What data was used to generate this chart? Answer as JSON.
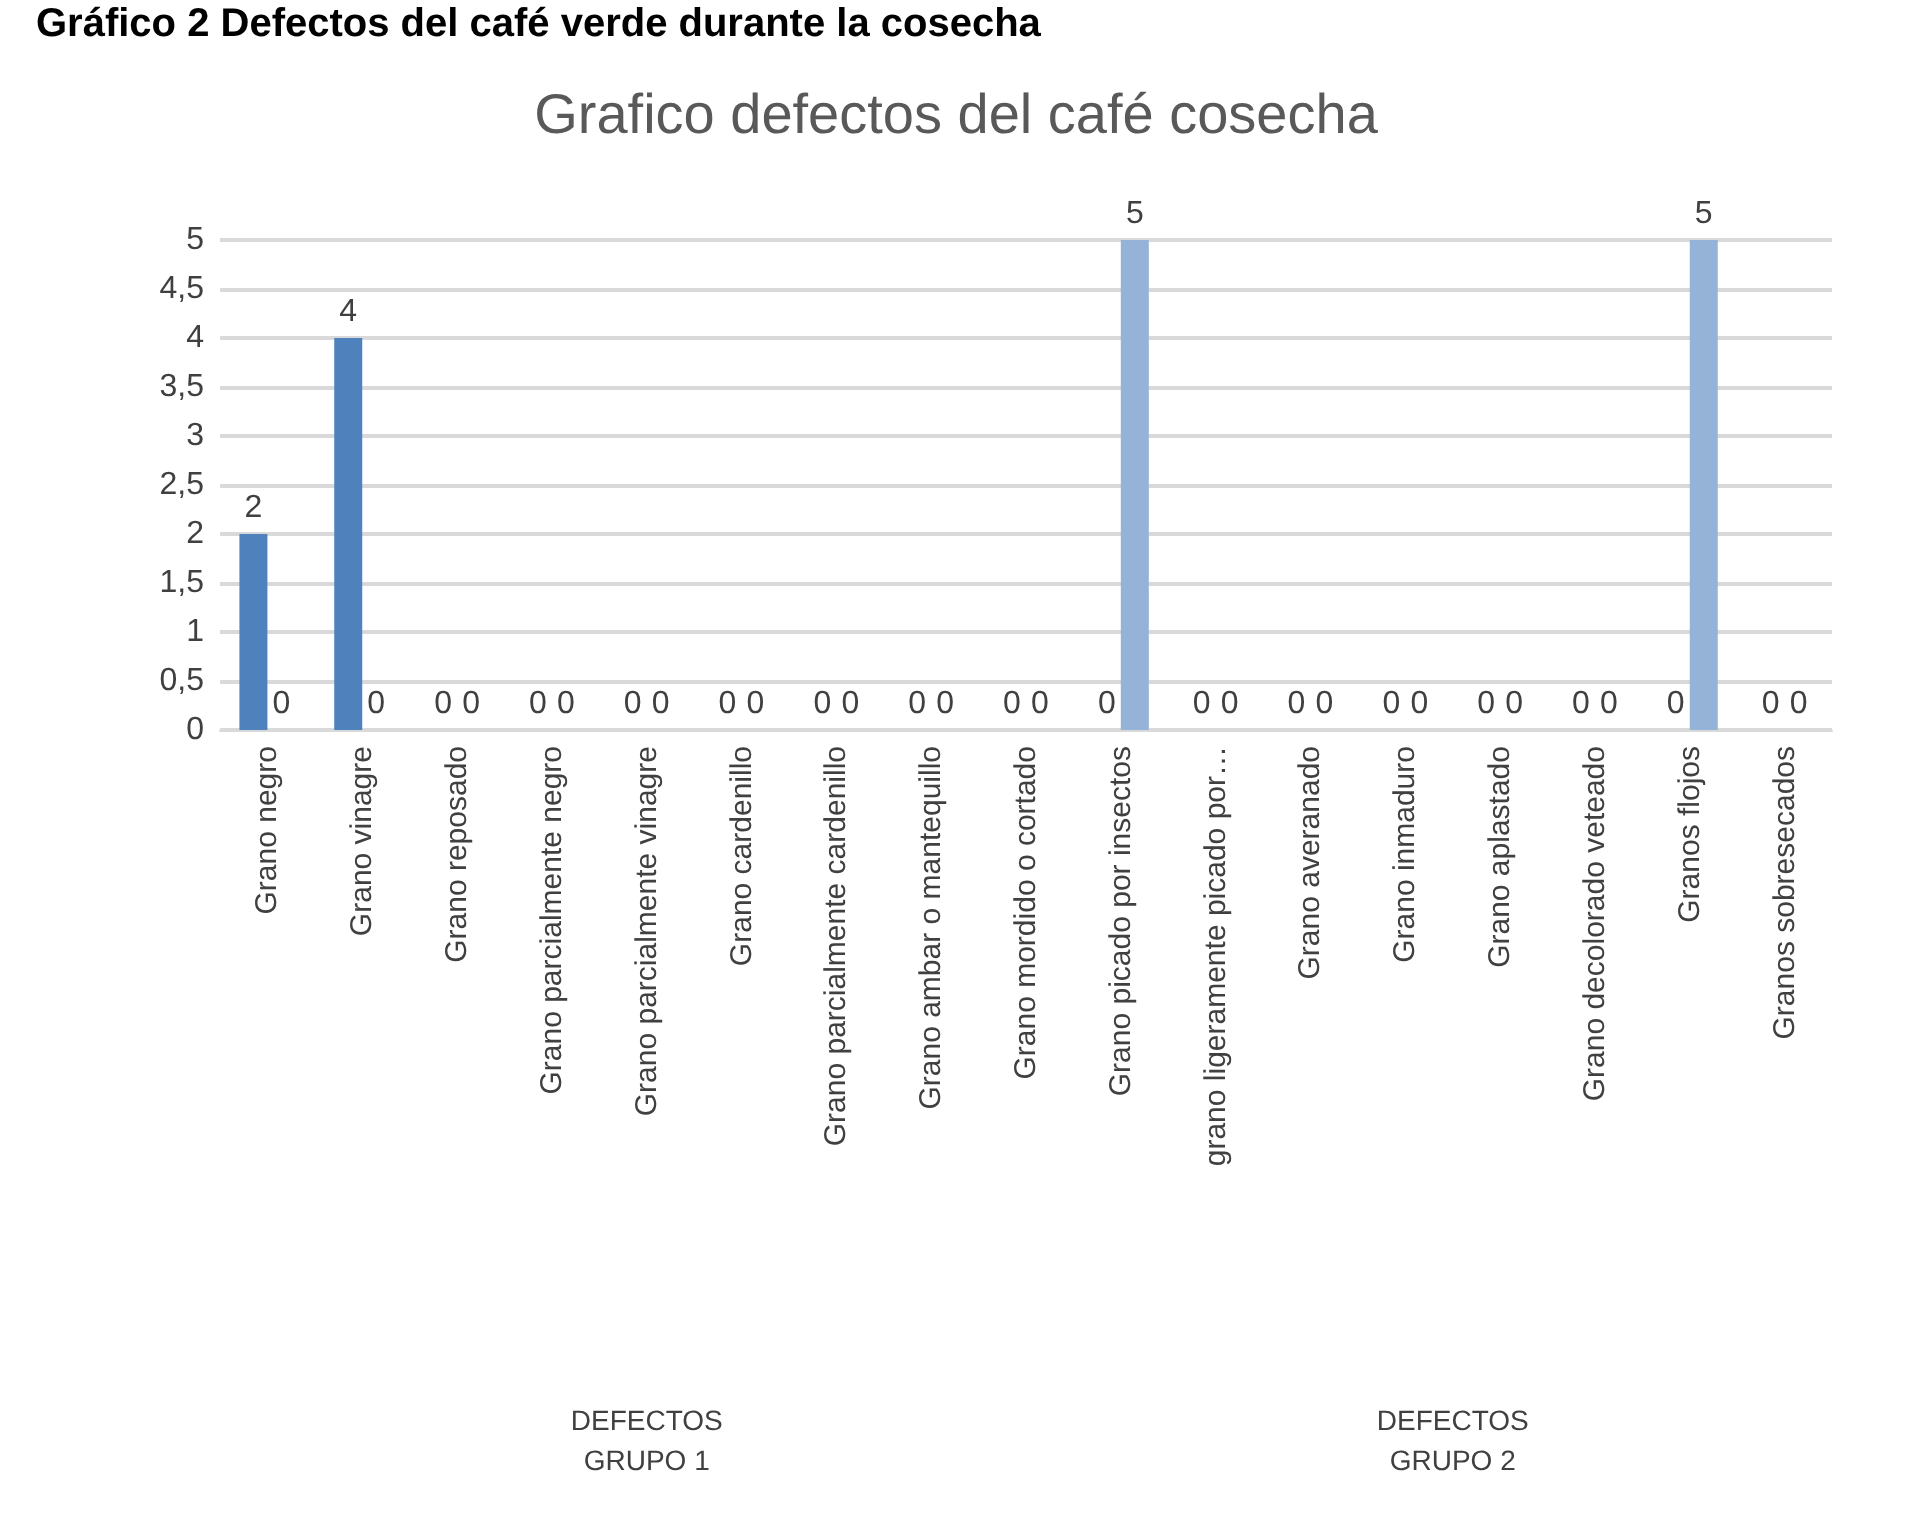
{
  "chart_data": {
    "type": "bar",
    "title": "Grafico defectos del café cosecha",
    "categories": [
      "Grano negro",
      "Grano vinagre",
      "Grano reposado",
      "Grano parcialmente negro",
      "Grano parcialmente vinagre",
      "Grano cardenillo",
      "Grano parcialmente cardenillo",
      "Grano ambar o mantequillo",
      "Grano mordido o cortado",
      "Grano picado por insectos",
      "grano ligeramente picado por…",
      "Grano averanado",
      "Grano inmaduro",
      "Grano aplastado",
      "Grano decolorado veteado",
      "Granos flojos",
      "Granos sobresecados"
    ],
    "series": [
      {
        "color": "#4f81bd",
        "values": [
          2,
          4,
          0,
          0,
          0,
          0,
          0,
          0,
          0,
          0,
          0,
          0,
          0,
          0,
          0,
          0,
          0
        ]
      },
      {
        "color": "#95b3d7",
        "values": [
          0,
          0,
          0,
          0,
          0,
          0,
          0,
          0,
          0,
          5,
          0,
          0,
          0,
          0,
          0,
          5,
          0
        ]
      }
    ],
    "ylim": [
      0,
      5
    ],
    "yticks": [
      0,
      {
        "value": 0.5,
        "label": "0,5"
      },
      1,
      {
        "value": 1.5,
        "label": "1,5"
      },
      2,
      {
        "value": 2.5,
        "label": "2,5"
      },
      3,
      {
        "value": 3.5,
        "label": "3,5"
      },
      4,
      {
        "value": 4.5,
        "label": "4,5"
      },
      5
    ],
    "grid": "y",
    "data_labels": true,
    "annotations": [
      "Gráfico 2 Defectos del café verde durante la cosecha",
      "DEFECTOS\nGRUPO 1",
      "DEFECTOS\nGRUPO 2"
    ]
  }
}
